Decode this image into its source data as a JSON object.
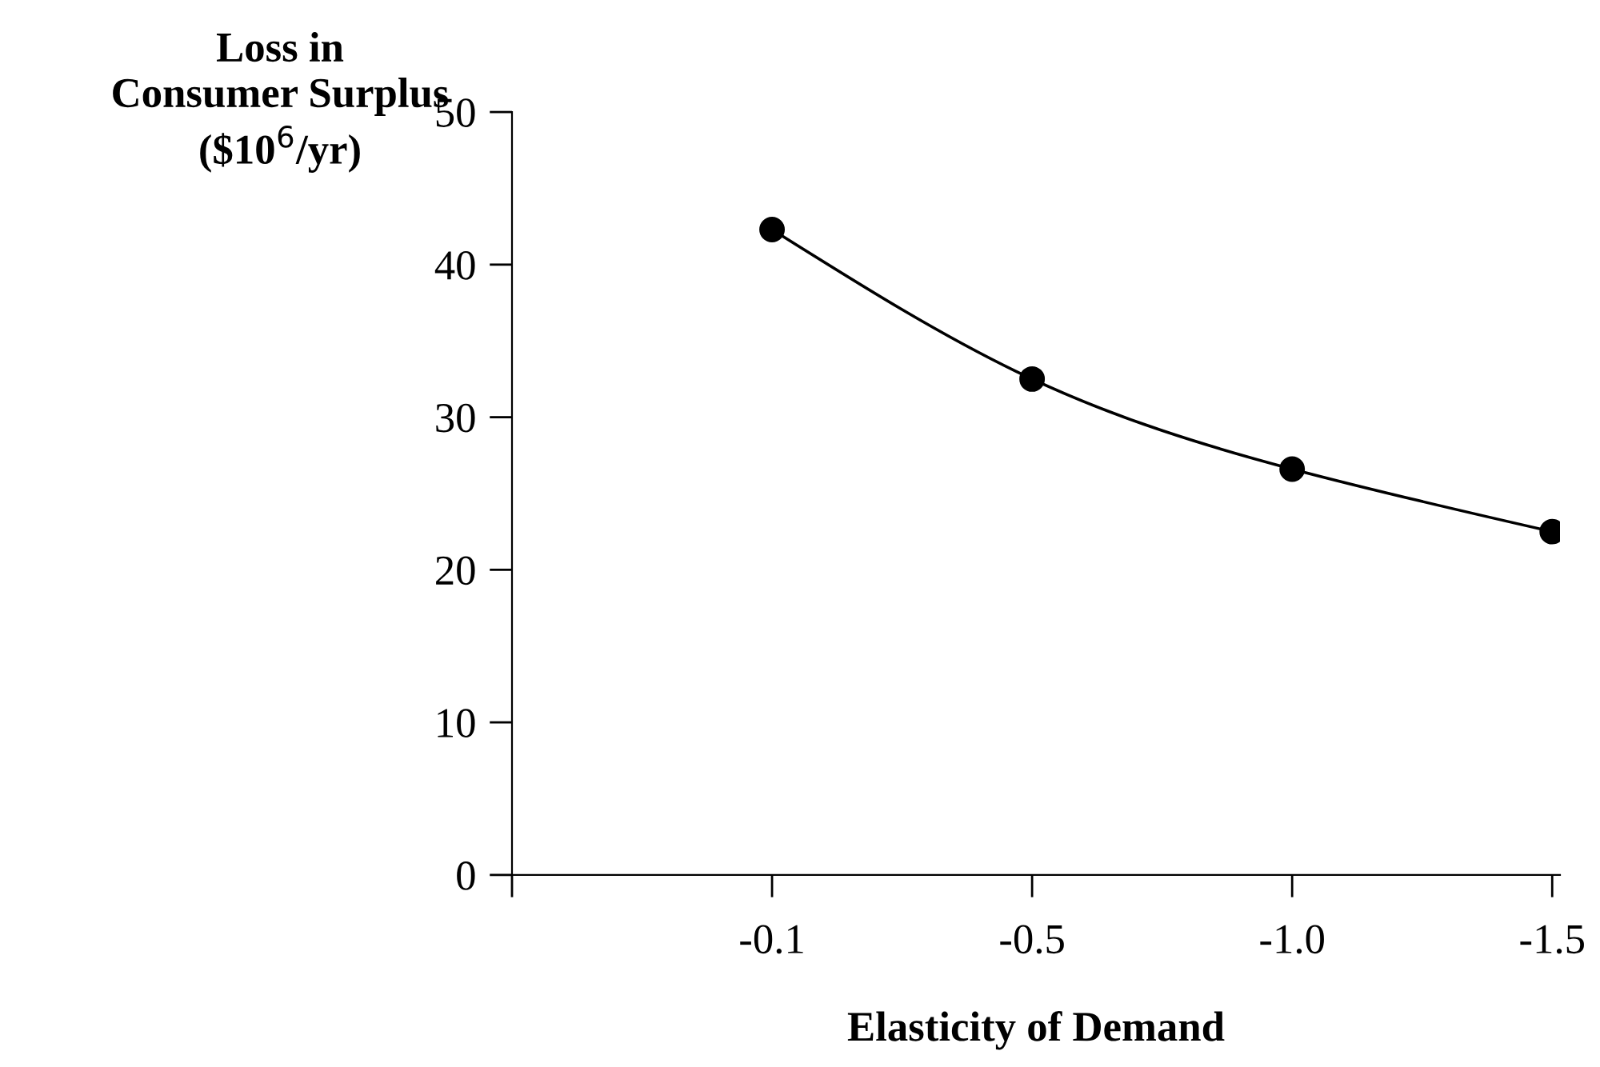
{
  "chart_data": {
    "type": "line",
    "xlabel": "Elasticity of Demand",
    "ylabel": "Loss in\nConsumer Surplus\n($10$^{6}$/yr)",
    "categories": [
      "-0.1",
      "-0.5",
      "-1.0",
      "-1.5"
    ],
    "series": [
      {
        "color": "#000000",
        "values": [
          42.3,
          32.5,
          26.6,
          22.5
        ]
      }
    ],
    "ylim": [
      0,
      50
    ],
    "yticks": [
      0,
      10,
      20,
      30,
      40,
      50
    ],
    "grid": false,
    "legend": false,
    "marker": "circle",
    "line_style": "solid"
  }
}
